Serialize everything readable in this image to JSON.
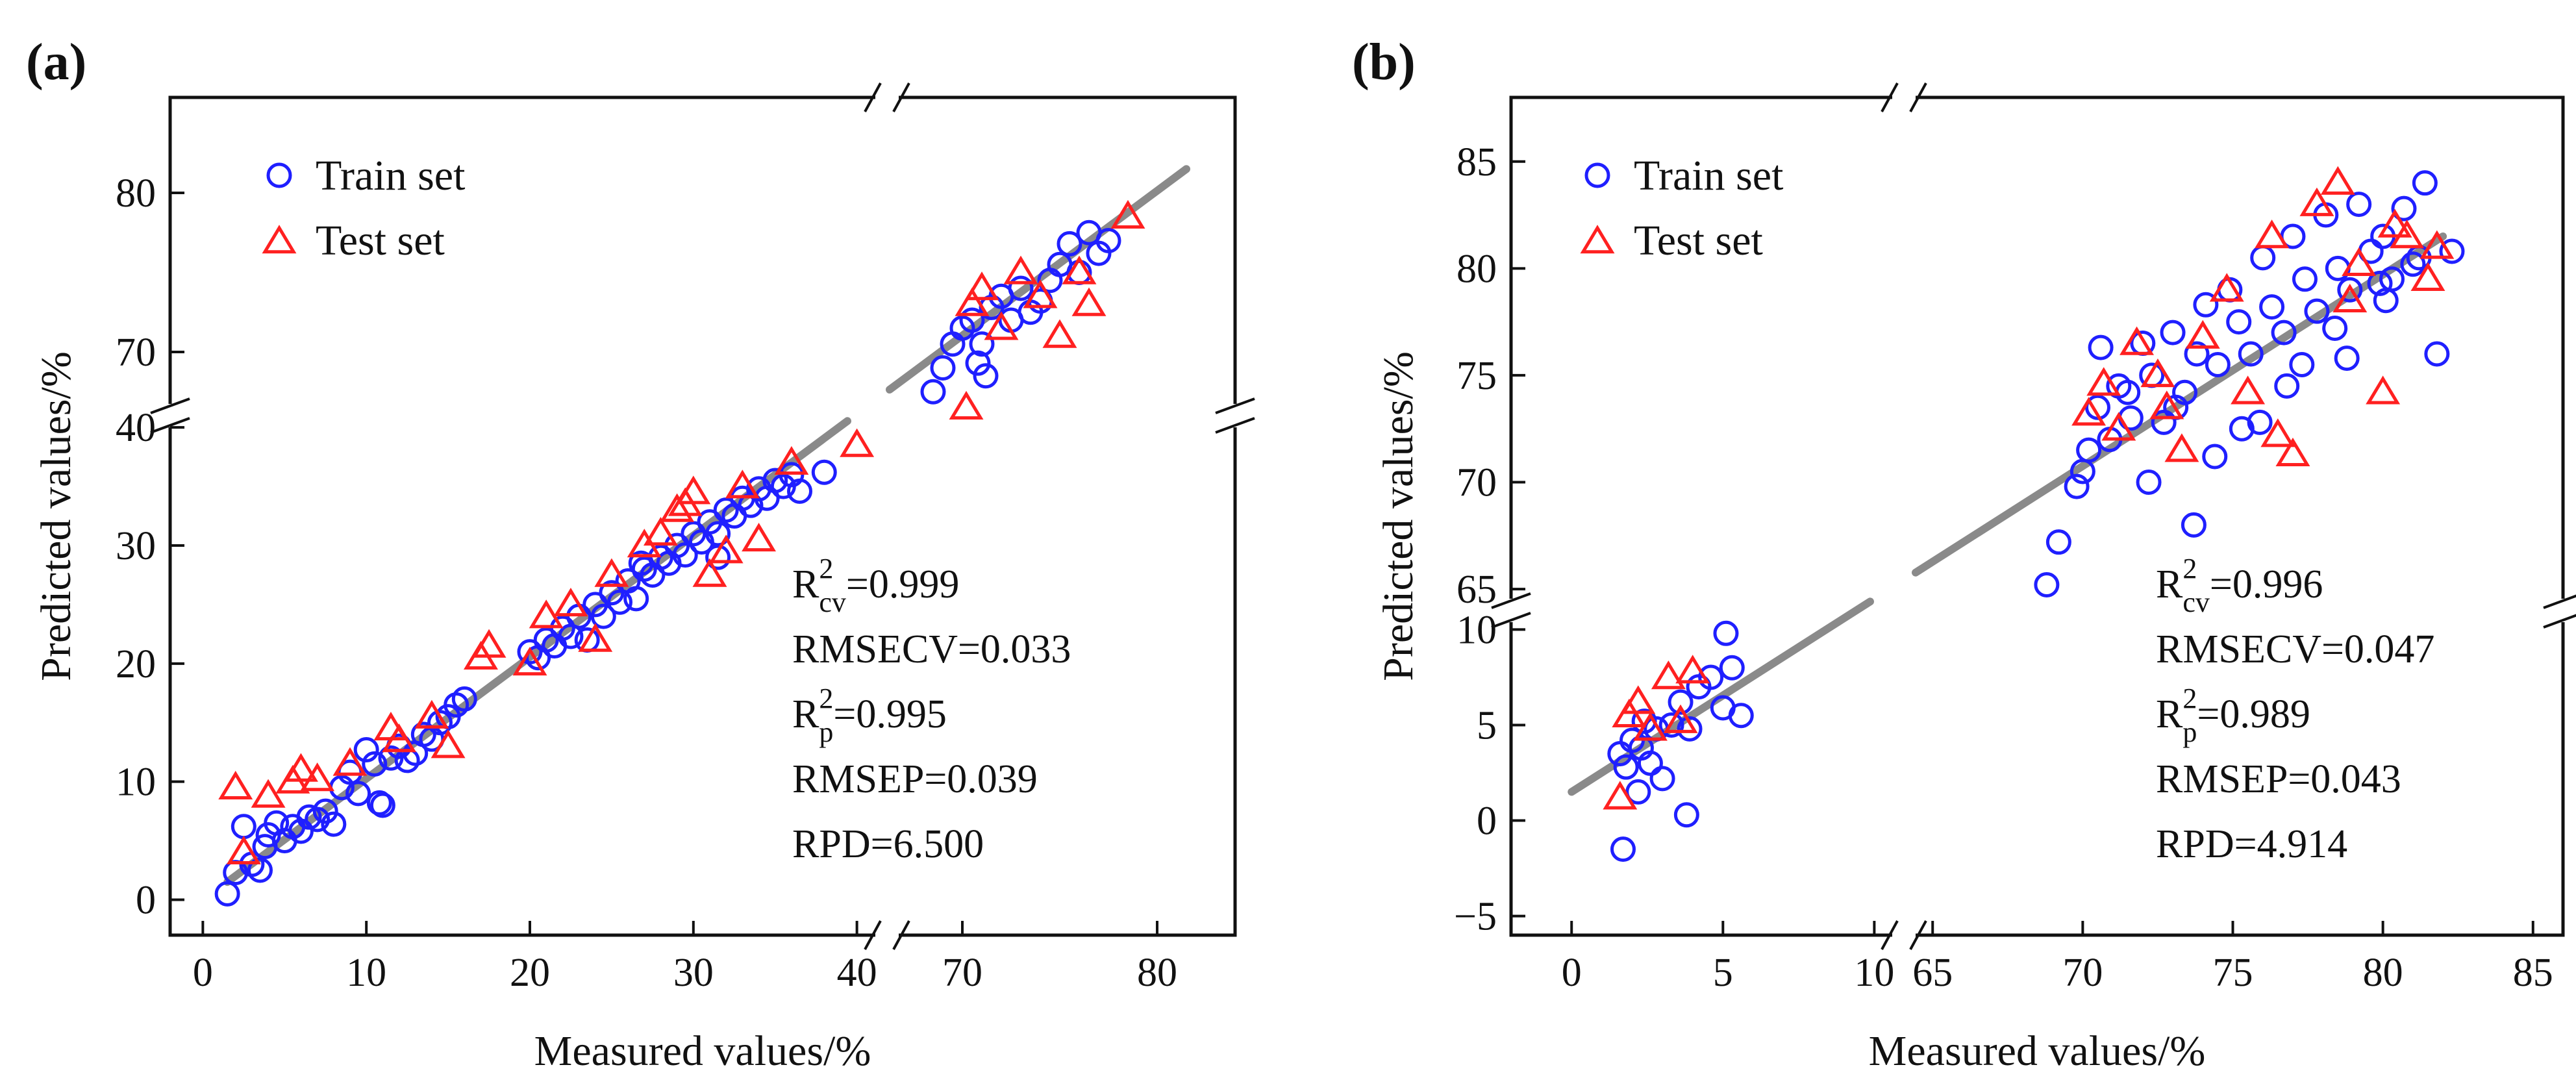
{
  "chart_data": [
    {
      "type": "scatter",
      "panel_label": "(a)",
      "xlabel": "Measured values/%",
      "ylabel": "Predicted values/%",
      "x_break": [
        42,
        66
      ],
      "y_break": [
        41,
        66
      ],
      "xlim": [
        -2,
        84
      ],
      "ylim": [
        -3,
        86
      ],
      "x_ticks": [
        0,
        10,
        20,
        30,
        40,
        70,
        80
      ],
      "x_tick_labels": [
        "0",
        "10",
        "20",
        "30",
        "40",
        "70",
        "80"
      ],
      "y_ticks": [
        0,
        10,
        20,
        30,
        40,
        70,
        80
      ],
      "y_tick_labels": [
        "0",
        "10",
        "20",
        "30",
        "40",
        "70",
        "80"
      ],
      "legend": {
        "position": "top-left",
        "entries": [
          {
            "label": "Train set",
            "marker": "circle",
            "color": "#1f1fff"
          },
          {
            "label": "Test set",
            "marker": "triangle",
            "color": "#ff2020"
          }
        ]
      },
      "fit_line": {
        "x": [
          1.5,
          81.5
        ],
        "y": [
          1.5,
          81.5
        ]
      },
      "stats": {
        "r2cv_prefix": "R",
        "r2cv_sup": "2",
        "r2cv_sub": "cv",
        "r2cv_value": "=0.999",
        "rmsecv": "RMSECV=0.033",
        "r2p_prefix": "R",
        "r2p_sup": "2",
        "r2p_sub": "p",
        "r2p_value": "=0.995",
        "rmsep": "RMSEP=0.039",
        "rpd": "RPD=6.500"
      },
      "series": [
        {
          "name": "Train set",
          "marker": "circle",
          "color": "#1f1fff",
          "x": [
            1.5,
            2,
            2.5,
            3,
            3.5,
            4,
            4.5,
            5,
            5.5,
            6,
            6.5,
            7,
            7.5,
            8,
            8.5,
            9,
            9.5,
            10,
            10.5,
            11,
            11.5,
            12,
            12.5,
            13,
            13.5,
            14,
            14.5,
            15,
            15.5,
            16,
            20,
            20.5,
            21,
            21.5,
            22,
            22.5,
            23,
            23.5,
            24,
            24.5,
            25,
            25.5,
            26,
            26.5,
            27,
            27.5,
            28,
            28.5,
            29,
            29.5,
            30,
            30.5,
            31,
            31.5,
            32,
            32.5,
            33,
            33.5,
            34,
            34.5,
            35,
            35.5,
            36,
            36.5,
            38,
            3.8,
            10.8,
            26.8,
            31.5,
            68.5,
            69,
            69.5,
            70,
            70.5,
            71,
            71.5,
            72,
            72.5,
            73,
            73.5,
            74,
            74.5,
            75,
            75.5,
            76,
            76.5,
            77,
            77.5,
            70.8,
            71.2
          ],
          "y": [
            0.5,
            2.3,
            6.2,
            3,
            2.5,
            5.5,
            6.5,
            5,
            6.2,
            5.8,
            7,
            6.8,
            7.5,
            6.4,
            9.5,
            10.8,
            9,
            12.7,
            11.5,
            8,
            12,
            13,
            11.8,
            12.4,
            14,
            13.6,
            15,
            15.5,
            16.5,
            17,
            21,
            20.5,
            22,
            21.5,
            23,
            22.3,
            24,
            22,
            25,
            24,
            26,
            25.2,
            27,
            25.5,
            28,
            27.5,
            29,
            28.5,
            30,
            29.2,
            31,
            30.3,
            32,
            31,
            33,
            32.5,
            34,
            33.4,
            34.8,
            34,
            35.5,
            35,
            36,
            34.6,
            36.2,
            4.5,
            8.2,
            28.5,
            29,
            67.5,
            69,
            70.5,
            71.5,
            72,
            70.5,
            72.8,
            73.5,
            72,
            74,
            72.5,
            73.2,
            74.5,
            75.5,
            76.8,
            75,
            77.5,
            76.2,
            77,
            69.3,
            68.5
          ]
        },
        {
          "name": "Test set",
          "marker": "triangle",
          "color": "#ff2020",
          "x": [
            2,
            2.5,
            4,
            5.5,
            6,
            7,
            9,
            11.5,
            12,
            14,
            15,
            17,
            17.5,
            20,
            21,
            22.5,
            24,
            25,
            27,
            28,
            29,
            29.5,
            30,
            31,
            32,
            33,
            34,
            36,
            40,
            70.5,
            71,
            72,
            73,
            74,
            75,
            76,
            76.5,
            78.5,
            70.2
          ],
          "y": [
            9.5,
            4,
            8.8,
            10,
            11,
            10.2,
            11.5,
            14.5,
            13.5,
            15.5,
            13,
            20.5,
            21.5,
            20,
            24,
            25,
            22,
            27.5,
            30,
            31,
            33,
            33.5,
            34.5,
            27.5,
            29.5,
            35,
            30.5,
            37,
            38.5,
            73,
            74,
            71.5,
            75,
            73.5,
            71,
            75,
            73,
            78.5,
            66.5
          ]
        }
      ]
    },
    {
      "type": "scatter",
      "panel_label": "(b)",
      "xlabel": "Measured values/%",
      "ylabel": "Predicted values/%",
      "x_break": [
        11,
        64
      ],
      "y_break": [
        11,
        64
      ],
      "xlim": [
        -2,
        86
      ],
      "ylim": [
        -6,
        88
      ],
      "x_ticks": [
        0,
        5,
        10,
        65,
        70,
        75,
        80,
        85
      ],
      "x_tick_labels": [
        "0",
        "5",
        "10",
        "65",
        "70",
        "75",
        "80",
        "85"
      ],
      "y_ticks": [
        -5,
        0,
        5,
        10,
        65,
        70,
        75,
        80,
        85
      ],
      "y_tick_labels": [
        "−5",
        "0",
        "5",
        "10",
        "65",
        "70",
        "75",
        "80",
        "85"
      ],
      "legend": {
        "position": "top-left",
        "entries": [
          {
            "label": "Train set",
            "marker": "circle",
            "color": "#1f1fff"
          },
          {
            "label": "Test set",
            "marker": "triangle",
            "color": "#ff2020"
          }
        ]
      },
      "fit_line": {
        "x": [
          0,
          82
        ],
        "y": [
          1.5,
          81.5
        ]
      },
      "stats": {
        "r2cv_prefix": "R",
        "r2cv_sup": "2",
        "r2cv_sub": "cv",
        "r2cv_value": "=0.996",
        "rmsecv": "RMSECV=0.047",
        "r2p_prefix": "R",
        "r2p_sup": "2",
        "r2p_sub": "p",
        "r2p_value": "=0.989",
        "rmsep": "RMSEP=0.043",
        "rpd": "RPD=4.914"
      },
      "series": [
        {
          "name": "Train set",
          "marker": "circle",
          "color": "#1f1fff",
          "x": [
            1.6,
            1.8,
            2,
            2.2,
            2.4,
            2.6,
            2.8,
            3,
            3.3,
            3.6,
            3.9,
            4.2,
            4.6,
            5,
            5.3,
            5.6,
            1.7,
            2.3,
            3.8,
            5.1,
            68.8,
            69.2,
            69.8,
            70.2,
            70.5,
            70.9,
            71.2,
            71.6,
            72,
            72.3,
            72.7,
            73,
            73.4,
            73.8,
            74.1,
            74.5,
            74.9,
            75.2,
            75.6,
            76,
            76.3,
            76.7,
            77,
            77.4,
            77.8,
            78.1,
            78.5,
            78.9,
            79.2,
            79.6,
            80,
            80.3,
            80.7,
            81,
            81.4,
            81.8,
            82.3,
            70.6,
            72.2,
            73.7,
            75.3,
            76.8,
            78.4,
            79.9,
            81.2,
            71.5,
            74.4,
            77.3,
            80.1,
            70,
            73.1,
            75.9,
            78.8
          ],
          "y": [
            3.5,
            2.8,
            4.2,
            1.5,
            5.2,
            3,
            4.8,
            2.2,
            5,
            6.2,
            4.8,
            7,
            7.5,
            5.9,
            8,
            5.5,
            -1.5,
            3.8,
            0.3,
            9.8,
            65.2,
            67.2,
            69.8,
            71.5,
            73.5,
            72,
            74.5,
            73,
            76.5,
            75,
            72.8,
            77,
            74.2,
            76,
            78.3,
            75.5,
            79,
            77.5,
            76,
            80.5,
            78.2,
            77,
            81.5,
            79.5,
            78,
            82.5,
            80,
            79,
            83,
            80.8,
            81.5,
            79.5,
            82.8,
            80.2,
            84,
            76,
            80.8,
            76.3,
            70,
            68,
            72.5,
            74.5,
            77.2,
            79.3,
            80.5,
            74.2,
            71.2,
            75.5,
            78.5,
            70.5,
            73.5,
            72.8,
            75.8
          ]
        },
        {
          "name": "Test set",
          "marker": "triangle",
          "color": "#ff2020",
          "x": [
            1.6,
            1.9,
            2.2,
            2.6,
            3.2,
            3.6,
            4,
            70.2,
            70.7,
            71.2,
            71.8,
            72.5,
            73.3,
            74,
            74.8,
            75.5,
            76.3,
            77,
            77.8,
            78.5,
            79.2,
            80,
            80.8,
            81.5,
            81.8,
            72.8,
            76.5,
            78.9,
            80.4
          ],
          "y": [
            1.2,
            5.5,
            6.2,
            4.8,
            7.5,
            5.2,
            7.8,
            73.2,
            74.6,
            72.5,
            76.5,
            75,
            71.5,
            76.8,
            79,
            74.2,
            81.5,
            71.3,
            83,
            84,
            80.2,
            74.2,
            81.5,
            79.5,
            81,
            73.5,
            72.2,
            78.5,
            82
          ]
        }
      ]
    }
  ]
}
